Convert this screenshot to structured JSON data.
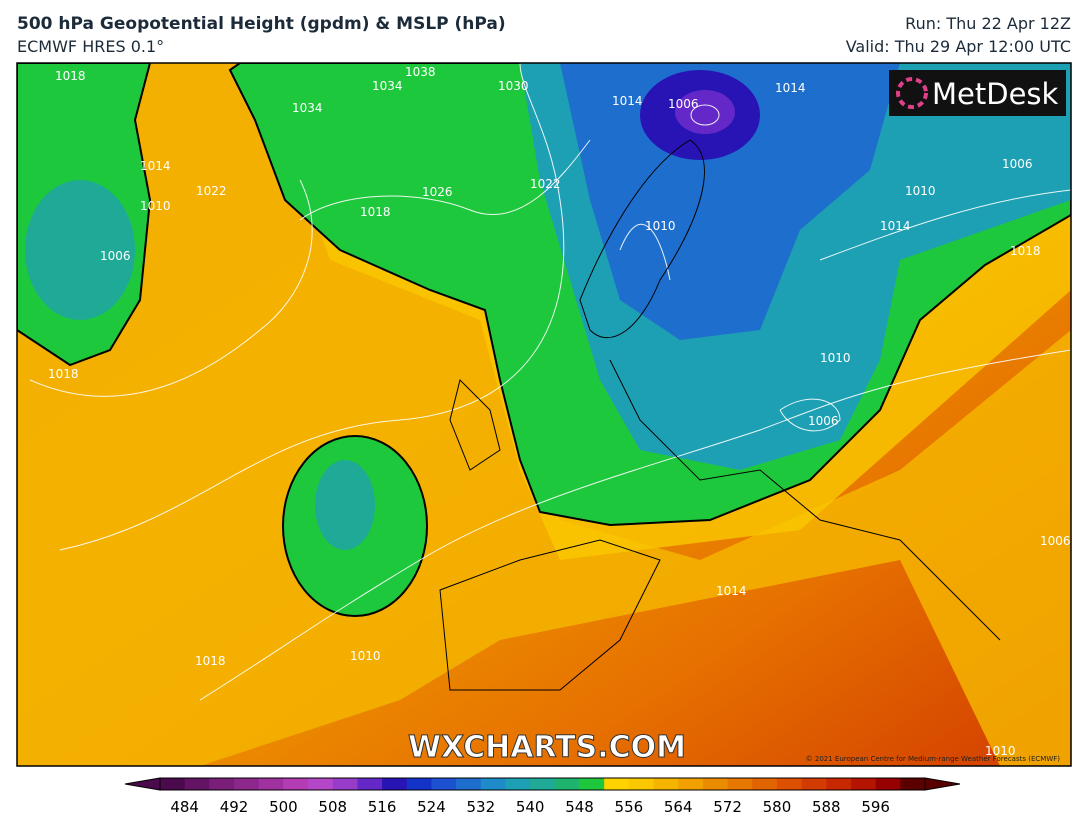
{
  "header": {
    "title": "500 hPa Geopotential Height (gpdm) & MSLP (hPa)",
    "subtitle": "ECMWF HRES 0.1°",
    "run": "Run: Thu 22 Apr 12Z",
    "valid": "Valid: Thu 29 Apr 12:00 UTC"
  },
  "map": {
    "logo": "MetDesk",
    "watermark": "WXCHARTS.COM",
    "copyright": "© 2021 European Centre for Medium-range Weather Forecasts (ECMWF)",
    "isobar_labels": [
      "1018",
      "1014",
      "1010",
      "1006",
      "1022",
      "1034",
      "1034",
      "1038",
      "1030",
      "1014",
      "1006",
      "1014",
      "1006",
      "1026",
      "1018",
      "1022",
      "1010",
      "1010",
      "1014",
      "1018",
      "1006",
      "1010",
      "1006",
      "1018",
      "1018",
      "1010",
      "1014",
      "1010"
    ]
  },
  "colorbar": {
    "range": [
      480,
      604
    ],
    "colors": [
      "#4b0a4b",
      "#641464",
      "#7a1e7a",
      "#8c288c",
      "#a032a0",
      "#b43cb4",
      "#b446c8",
      "#963cc8",
      "#6428c8",
      "#2814b4",
      "#1432c8",
      "#1e50d2",
      "#1e6ecd",
      "#1e8cc8",
      "#1ea0b4",
      "#1eaa96",
      "#1eb46e",
      "#1ec83c",
      "#ffd200",
      "#fac800",
      "#f5b400",
      "#f0a000",
      "#eb8c00",
      "#e67800",
      "#e16400",
      "#dc5000",
      "#d23c00",
      "#c82800",
      "#b41400",
      "#960000",
      "#5a0000"
    ],
    "ticks": [
      484,
      492,
      500,
      508,
      516,
      524,
      532,
      540,
      548,
      556,
      564,
      572,
      580,
      588,
      596
    ]
  }
}
